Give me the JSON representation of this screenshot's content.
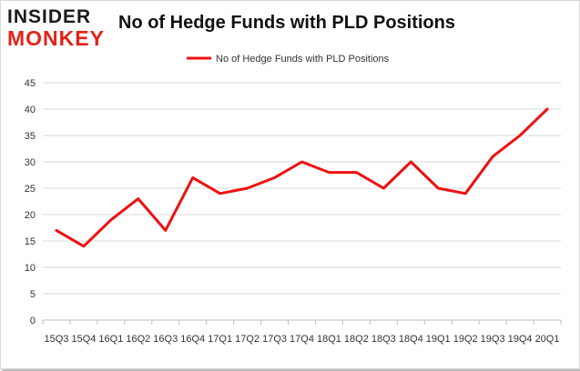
{
  "logo": {
    "line1": "INSIDER",
    "line2": "MONKEY"
  },
  "chart_data": {
    "type": "line",
    "title": "No of Hedge Funds with PLD Positions",
    "xlabel": "",
    "ylabel": "",
    "categories": [
      "15Q3",
      "15Q4",
      "16Q1",
      "16Q2",
      "16Q3",
      "16Q4",
      "17Q1",
      "17Q2",
      "17Q3",
      "17Q4",
      "18Q1",
      "18Q2",
      "18Q3",
      "18Q4",
      "19Q1",
      "19Q2",
      "19Q3",
      "19Q4",
      "20Q1"
    ],
    "series": [
      {
        "name": "No of Hedge Funds with PLD Positions",
        "color": "#ee1111",
        "values": [
          17,
          14,
          19,
          23,
          17,
          27,
          24,
          25,
          27,
          30,
          28,
          28,
          25,
          30,
          25,
          24,
          31,
          35,
          40
        ]
      }
    ],
    "ylim": [
      0,
      45
    ],
    "yticks": [
      0,
      5,
      10,
      15,
      20,
      25,
      30,
      35,
      40,
      45
    ],
    "grid": true,
    "legend_position": "top-center"
  }
}
